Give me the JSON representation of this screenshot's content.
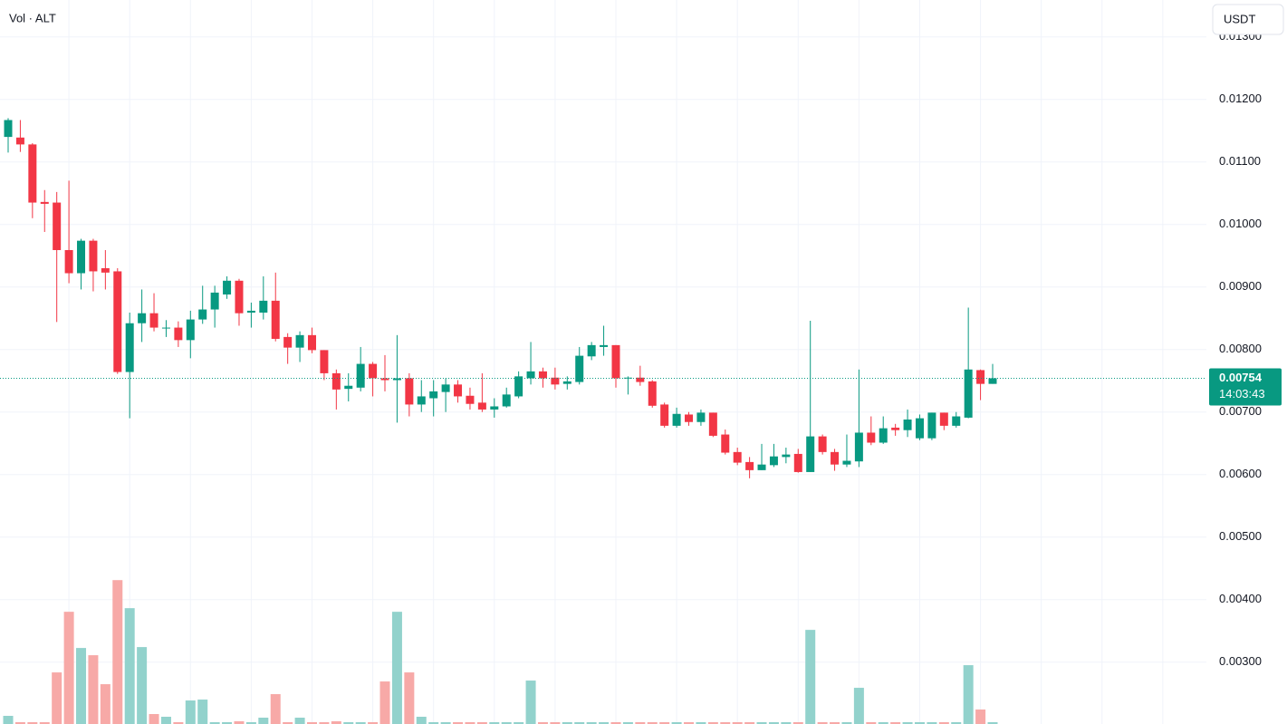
{
  "chart_data": {
    "type": "candlestick",
    "legend_label": "Vol · ALT",
    "currency": "USDT",
    "up_color": "#089981",
    "down_color": "#f23645",
    "volume_up_color": "#92d2cc",
    "volume_down_color": "#f7a9a7",
    "open": [
      0.0114,
      0.01139,
      0.01128,
      0.01036,
      0.01035,
      0.00959,
      0.00922,
      0.00974,
      0.0093,
      0.00925,
      0.00764,
      0.00842,
      0.00858,
      0.00834,
      0.00835,
      0.00815,
      0.00848,
      0.00864,
      0.00888,
      0.0091,
      0.00859,
      0.00859,
      0.00878,
      0.0082,
      0.00803,
      0.00823,
      0.00799,
      0.00762,
      0.00737,
      0.00739,
      0.00777,
      0.00754,
      0.00751,
      0.00754,
      0.00712,
      0.00722,
      0.00732,
      0.00744,
      0.00726,
      0.00715,
      0.00704,
      0.00709,
      0.00725,
      0.00754,
      0.00765,
      0.00755,
      0.00745,
      0.00748,
      0.00789,
      0.00804,
      0.00807,
      0.00754,
      0.00755,
      0.00749,
      0.00712,
      0.00678,
      0.00696,
      0.00684,
      0.00699,
      0.00664,
      0.00636,
      0.0062,
      0.00607,
      0.00615,
      0.00628,
      0.00633,
      0.00604,
      0.00661,
      0.00636,
      0.00616,
      0.00621,
      0.00667,
      0.00651,
      0.00675,
      0.00671,
      0.00658,
      0.00658,
      0.00699,
      0.00678,
      0.00691,
      0.00767,
      0.00745
    ],
    "high": [
      0.0117,
      0.01167,
      0.0113,
      0.01055,
      0.01052,
      0.0107,
      0.00977,
      0.00977,
      0.00959,
      0.0093,
      0.00859,
      0.00896,
      0.0089,
      0.00847,
      0.00845,
      0.00862,
      0.00902,
      0.00902,
      0.00917,
      0.00913,
      0.00875,
      0.00917,
      0.00923,
      0.00826,
      0.00829,
      0.00835,
      0.00799,
      0.00768,
      0.00762,
      0.00804,
      0.0078,
      0.00791,
      0.00823,
      0.00762,
      0.00751,
      0.00751,
      0.00754,
      0.00751,
      0.00739,
      0.00762,
      0.00722,
      0.00739,
      0.00765,
      0.00812,
      0.00771,
      0.00771,
      0.00757,
      0.00804,
      0.00812,
      0.00838,
      0.00807,
      0.00757,
      0.00774,
      0.00751,
      0.00715,
      0.00707,
      0.007,
      0.00704,
      0.00699,
      0.00672,
      0.00643,
      0.00628,
      0.00649,
      0.00649,
      0.00643,
      0.00641,
      0.00846,
      0.00664,
      0.00641,
      0.00664,
      0.00768,
      0.00693,
      0.00693,
      0.00681,
      0.00704,
      0.00696,
      0.00699,
      0.00699,
      0.007,
      0.00867,
      0.00768,
      0.00777
    ],
    "low": [
      0.01115,
      0.01116,
      0.0101,
      0.00988,
      0.00844,
      0.00906,
      0.00896,
      0.00893,
      0.00896,
      0.00761,
      0.0069,
      0.00812,
      0.00829,
      0.0082,
      0.00804,
      0.00786,
      0.00841,
      0.00835,
      0.00881,
      0.00838,
      0.00835,
      0.00848,
      0.00813,
      0.00777,
      0.0078,
      0.00794,
      0.00751,
      0.00704,
      0.00717,
      0.00733,
      0.00725,
      0.00733,
      0.00683,
      0.00693,
      0.007,
      0.00693,
      0.007,
      0.00715,
      0.00704,
      0.007,
      0.00691,
      0.00707,
      0.00722,
      0.00744,
      0.00739,
      0.00736,
      0.00736,
      0.00744,
      0.00783,
      0.0079,
      0.00739,
      0.00728,
      0.00742,
      0.00707,
      0.00675,
      0.00675,
      0.00678,
      0.00678,
      0.0066,
      0.00632,
      0.00615,
      0.00594,
      0.00607,
      0.00612,
      0.00618,
      0.00603,
      0.00604,
      0.00632,
      0.00606,
      0.00612,
      0.00612,
      0.00647,
      0.00649,
      0.00662,
      0.0066,
      0.00655,
      0.00655,
      0.00671,
      0.00675,
      0.0069,
      0.00719,
      0.00745
    ],
    "close": [
      0.01167,
      0.01128,
      0.01035,
      0.01033,
      0.00959,
      0.00922,
      0.00974,
      0.00925,
      0.00923,
      0.00764,
      0.00842,
      0.00858,
      0.00835,
      0.00835,
      0.00815,
      0.00848,
      0.00864,
      0.00891,
      0.0091,
      0.00858,
      0.00862,
      0.00878,
      0.00817,
      0.00803,
      0.00823,
      0.00799,
      0.00762,
      0.00736,
      0.00742,
      0.00777,
      0.00754,
      0.00751,
      0.00754,
      0.00712,
      0.00725,
      0.00733,
      0.00744,
      0.00725,
      0.00713,
      0.00704,
      0.00709,
      0.00728,
      0.00757,
      0.00765,
      0.00754,
      0.00744,
      0.00749,
      0.0079,
      0.00807,
      0.00807,
      0.00754,
      0.00755,
      0.00748,
      0.0071,
      0.00678,
      0.00697,
      0.00684,
      0.00699,
      0.00662,
      0.00635,
      0.00619,
      0.00607,
      0.00616,
      0.00629,
      0.00632,
      0.00604,
      0.00661,
      0.00636,
      0.00616,
      0.00622,
      0.00667,
      0.00651,
      0.00674,
      0.00671,
      0.00688,
      0.0069,
      0.00699,
      0.00678,
      0.00693,
      0.00768,
      0.00745,
      0.00754
    ],
    "volume": [
      4.5,
      1,
      1,
      1,
      28.5,
      62,
      42,
      38,
      22,
      79.5,
      64,
      42.5,
      5.5,
      4,
      1,
      13,
      13.5,
      1,
      1,
      1.5,
      1,
      3.5,
      16.5,
      1,
      3.5,
      1,
      1,
      1.5,
      1,
      1,
      1,
      23.5,
      62,
      28.5,
      4,
      1,
      1,
      1,
      1,
      1,
      1,
      1,
      1,
      24,
      1,
      1,
      1,
      1,
      1,
      1,
      1,
      1,
      1,
      1,
      1,
      1,
      1,
      1,
      1,
      1,
      1,
      1,
      1,
      1,
      1,
      1,
      52,
      1,
      1,
      1,
      20,
      1,
      1,
      1,
      1,
      1,
      1,
      1,
      1,
      32.5,
      8,
      1
    ],
    "last_price": 0.00754,
    "countdown": "14:03:43",
    "ylim": [
      0.00201,
      0.01359
    ],
    "yticks": [
      {
        "value": 0.003,
        "label": "0.00300"
      },
      {
        "value": 0.004,
        "label": "0.00400"
      },
      {
        "value": 0.005,
        "label": "0.00500"
      },
      {
        "value": 0.006,
        "label": "0.00600"
      },
      {
        "value": 0.007,
        "label": "0.00700"
      },
      {
        "value": 0.008,
        "label": "0.00800"
      },
      {
        "value": 0.009,
        "label": "0.00900"
      },
      {
        "value": 0.01,
        "label": "0.01000"
      },
      {
        "value": 0.011,
        "label": "0.01100"
      },
      {
        "value": 0.012,
        "label": "0.01200"
      },
      {
        "value": 0.013,
        "label": "0.01300"
      }
    ],
    "y2lim": [
      0,
      400
    ],
    "grid": true
  }
}
